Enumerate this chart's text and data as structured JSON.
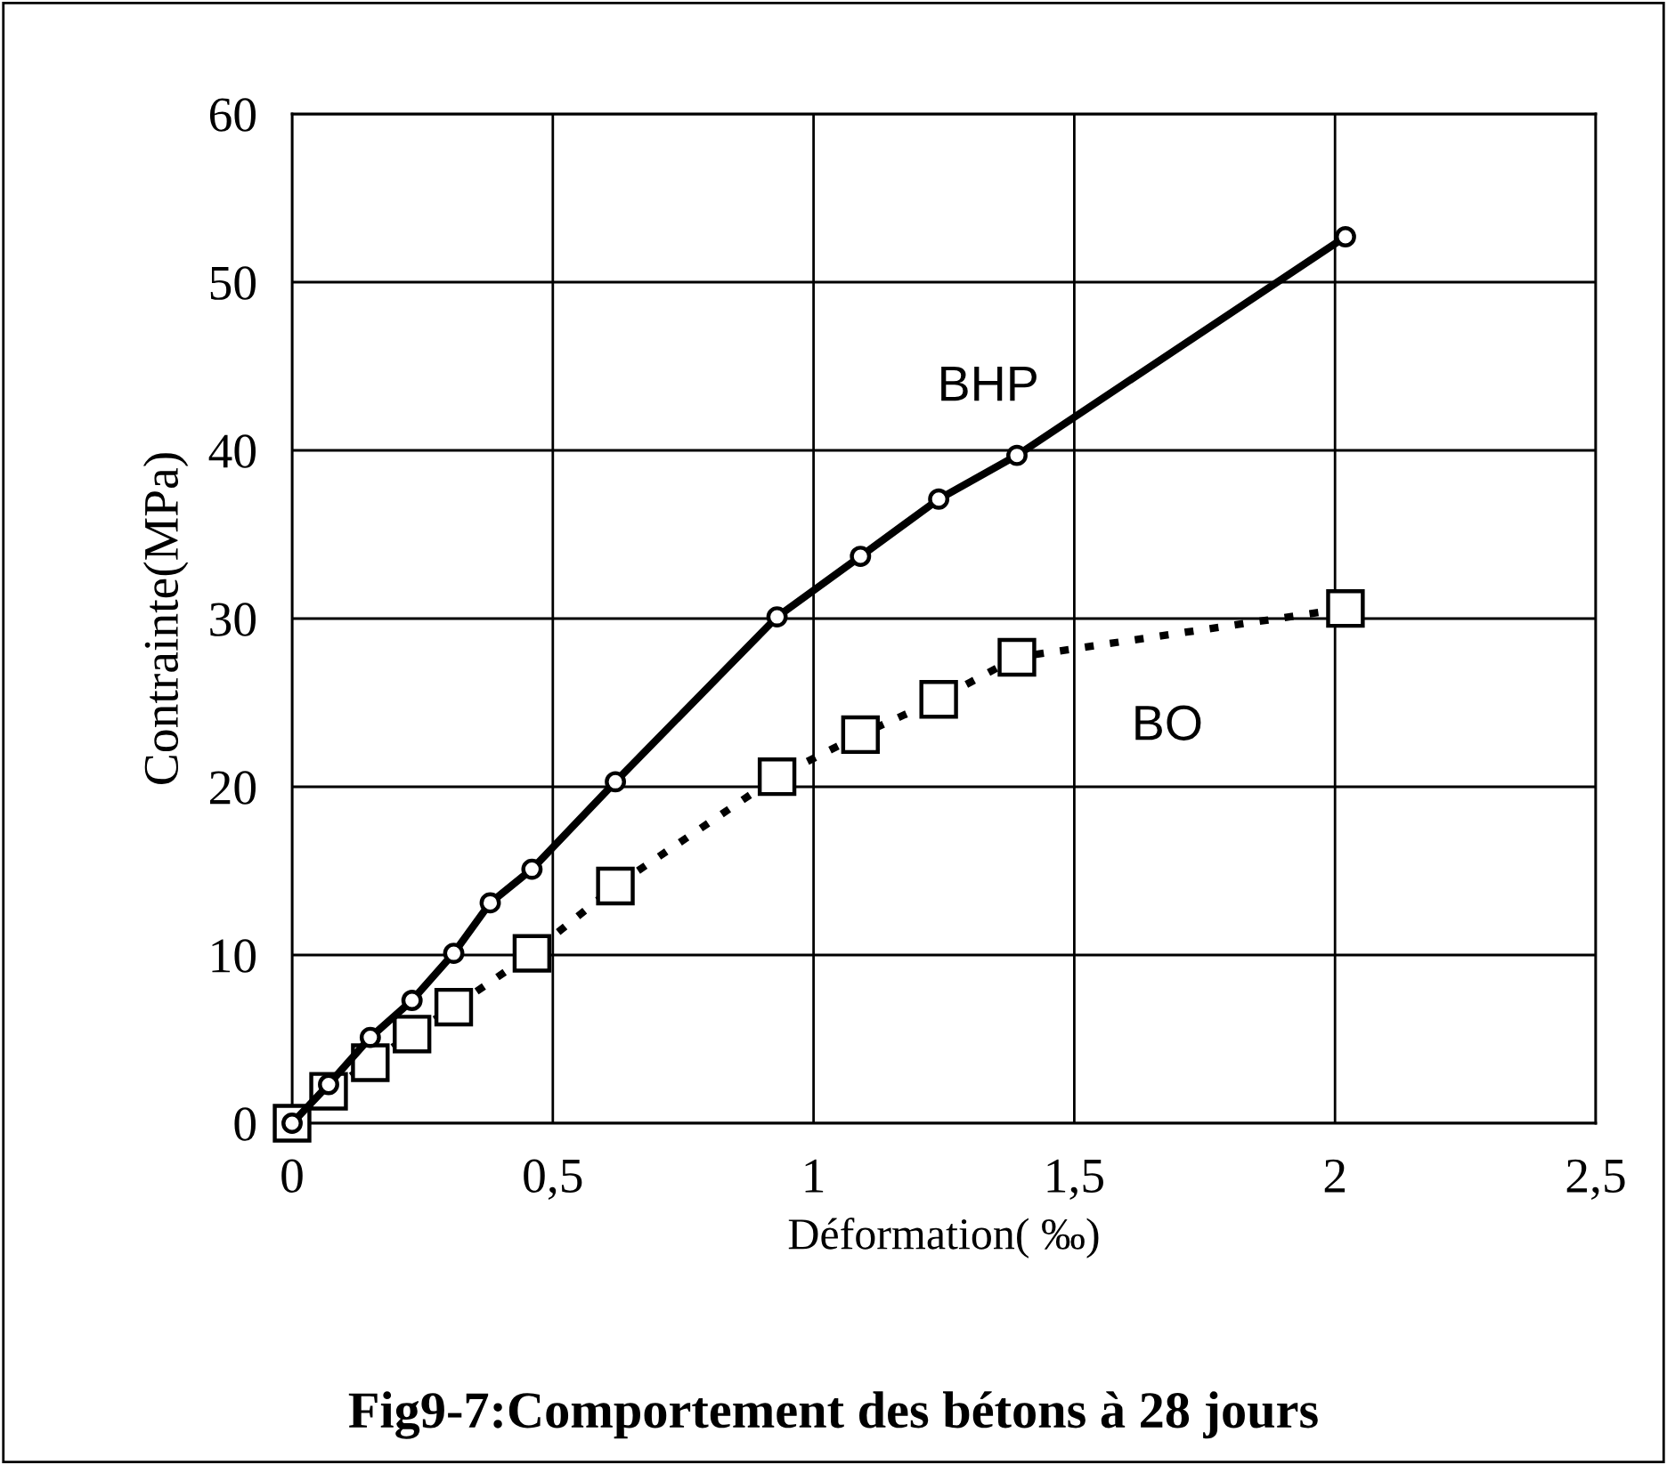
{
  "chart_data": {
    "type": "line",
    "title": "Fig9-7:Comportement des bétons à 28 jours",
    "xlabel": "Déformation( ‰)",
    "ylabel": "Contrainte(MPa)",
    "xlim": [
      0,
      2.5
    ],
    "xticks": [
      0,
      {
        "value": 0.5,
        "label": "0,5"
      },
      1,
      {
        "value": 1.5,
        "label": "1,5"
      },
      2,
      {
        "value": 2.5,
        "label": "2,5"
      }
    ],
    "ylim": [
      0,
      60
    ],
    "yticks": [
      0,
      10,
      20,
      30,
      40,
      50,
      60
    ],
    "grid": true,
    "legend": false,
    "series": [
      {
        "name": "BO",
        "color": "#000000",
        "marker": "square",
        "line_style": "dotted",
        "x": [
          0,
          0.07,
          0.15,
          0.23,
          0.31,
          0.46,
          0.62,
          0.93,
          1.09,
          1.24,
          1.39,
          2.02
        ],
        "values": [
          0,
          1.9,
          3.6,
          5.3,
          6.9,
          10.1,
          14.1,
          20.6,
          23.1,
          25.2,
          27.7,
          30.6
        ]
      },
      {
        "name": "BHP",
        "color": "#000000",
        "marker": "circle",
        "line_style": "solid",
        "x": [
          0,
          0.07,
          0.15,
          0.23,
          0.31,
          0.38,
          0.46,
          0.62,
          0.93,
          1.09,
          1.24,
          1.39,
          2.02
        ],
        "values": [
          0,
          2.3,
          5.1,
          7.3,
          10.1,
          13.1,
          15.1,
          20.3,
          30.1,
          33.7,
          37.1,
          39.7,
          52.7
        ]
      }
    ]
  }
}
